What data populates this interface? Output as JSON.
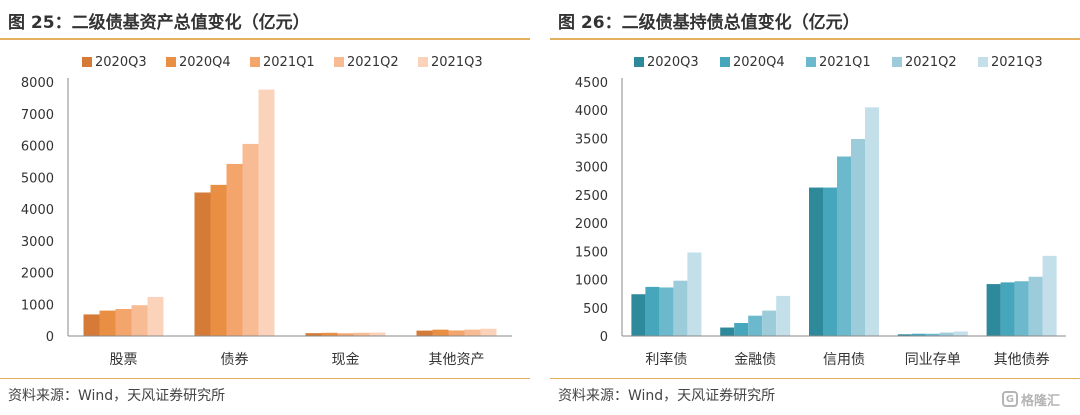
{
  "charts": [
    {
      "panel_title": "图 25：二级债基资产总值变化（亿元）",
      "source": "资料来源：Wind，天风证券研究所"
    },
    {
      "panel_title": "图 26：二级债基持债总值变化（亿元）",
      "source": "资料来源：Wind，天风证券研究所"
    }
  ],
  "watermark": {
    "text": "格隆汇",
    "icon": "gelonghui-logo-icon"
  },
  "chart_data": [
    {
      "type": "bar",
      "title": "图 25：二级债基资产总值变化（亿元）",
      "categories": [
        "股票",
        "债券",
        "现金",
        "其他资产"
      ],
      "series": [
        {
          "name": "2020Q3",
          "values": [
            680,
            4520,
            90,
            170
          ],
          "color": "#d67b37"
        },
        {
          "name": "2020Q4",
          "values": [
            800,
            4760,
            100,
            200
          ],
          "color": "#e88f44"
        },
        {
          "name": "2021Q1",
          "values": [
            850,
            5420,
            85,
            175
          ],
          "color": "#f4a56b"
        },
        {
          "name": "2021Q2",
          "values": [
            970,
            6050,
            100,
            200
          ],
          "color": "#f8bc95"
        },
        {
          "name": "2021Q3",
          "values": [
            1230,
            7760,
            110,
            230
          ],
          "color": "#fbd3bb"
        }
      ],
      "yticks": [
        0,
        1000,
        2000,
        3000,
        4000,
        5000,
        6000,
        7000,
        8000
      ],
      "ylim": [
        0,
        8000
      ],
      "grid": false,
      "legend": "top"
    },
    {
      "type": "bar",
      "title": "图 26：二级债基持债总值变化（亿元）",
      "categories": [
        "利率债",
        "金融债",
        "信用债",
        "同业存单",
        "其他债券"
      ],
      "series": [
        {
          "name": "2020Q3",
          "values": [
            740,
            150,
            2630,
            30,
            920
          ],
          "color": "#2e8a9b"
        },
        {
          "name": "2020Q4",
          "values": [
            870,
            230,
            2630,
            40,
            950
          ],
          "color": "#46a6bb"
        },
        {
          "name": "2021Q1",
          "values": [
            860,
            360,
            3180,
            40,
            970
          ],
          "color": "#6cb8cc"
        },
        {
          "name": "2021Q2",
          "values": [
            980,
            450,
            3490,
            60,
            1050
          ],
          "color": "#9ccbda"
        },
        {
          "name": "2021Q3",
          "values": [
            1480,
            710,
            4050,
            80,
            1420
          ],
          "color": "#c2dfea"
        }
      ],
      "yticks": [
        0,
        500,
        1000,
        1500,
        2000,
        2500,
        3000,
        3500,
        4000,
        4500
      ],
      "ylim": [
        0,
        4500
      ],
      "grid": false,
      "legend": "top"
    }
  ]
}
